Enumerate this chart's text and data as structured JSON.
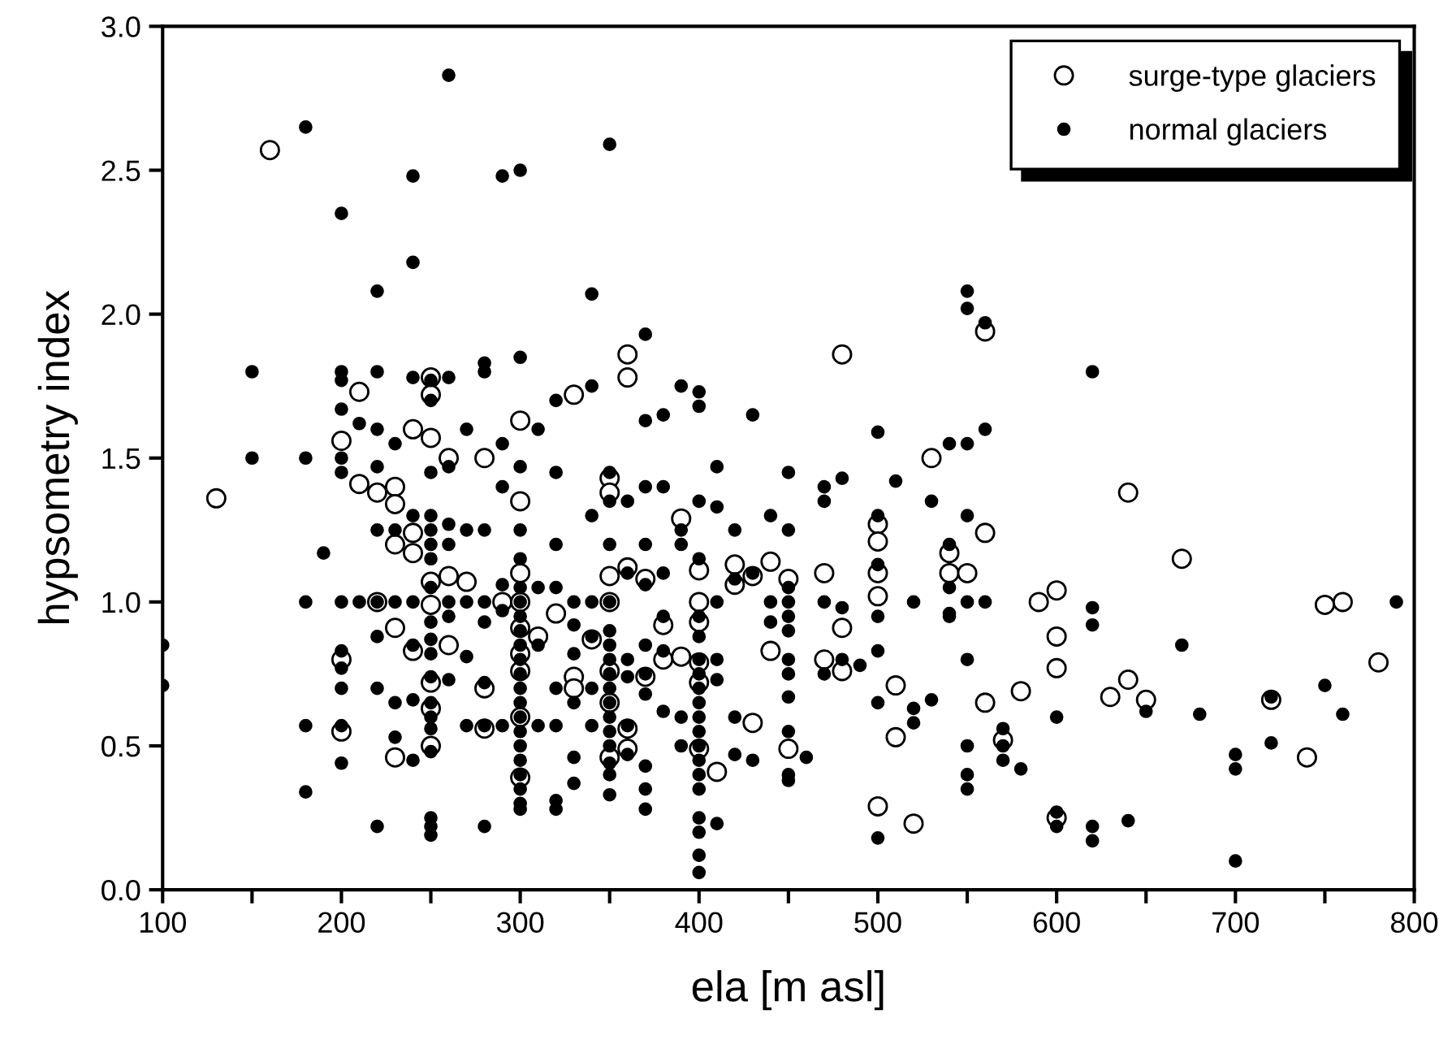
{
  "chart_data": {
    "type": "scatter",
    "xlabel": "ela [m asl]",
    "ylabel": "hypsometry index",
    "xlim": [
      100,
      800
    ],
    "ylim": [
      0.0,
      3.0
    ],
    "xticks": [
      100,
      {
        "value": 150,
        "label": null
      },
      200,
      {
        "value": 250,
        "label": null
      },
      300,
      {
        "value": 350,
        "label": null
      },
      400,
      {
        "value": 450,
        "label": null
      },
      500,
      {
        "value": 550,
        "label": null
      },
      600,
      {
        "value": 650,
        "label": null
      },
      700,
      {
        "value": 750,
        "label": null
      },
      800
    ],
    "yticks": [
      {
        "value": 0.0,
        "label": "0.0"
      },
      0.5,
      {
        "value": 1.0,
        "label": "1.0"
      },
      1.5,
      {
        "value": 2.0,
        "label": "2.0"
      },
      2.5,
      {
        "value": 3.0,
        "label": "3.0"
      }
    ],
    "grid": false,
    "legend": "top right",
    "series": [
      {
        "name": "surge-type glaciers",
        "color": "#000000",
        "marker": "open circle",
        "x": [
          130,
          160,
          200,
          200,
          200,
          210,
          210,
          220,
          220,
          230,
          230,
          230,
          230,
          230,
          240,
          240,
          240,
          240,
          250,
          250,
          250,
          250,
          250,
          250,
          250,
          250,
          260,
          260,
          260,
          270,
          280,
          280,
          280,
          290,
          300,
          300,
          300,
          300,
          300,
          300,
          300,
          300,
          300,
          310,
          320,
          330,
          330,
          330,
          340,
          350,
          350,
          350,
          350,
          350,
          350,
          350,
          360,
          360,
          360,
          360,
          360,
          370,
          370,
          380,
          380,
          390,
          390,
          400,
          400,
          400,
          400,
          400,
          400,
          410,
          420,
          420,
          430,
          430,
          440,
          440,
          450,
          450,
          470,
          470,
          480,
          480,
          480,
          500,
          500,
          500,
          500,
          500,
          510,
          510,
          520,
          530,
          540,
          540,
          550,
          560,
          560,
          560,
          570,
          580,
          590,
          600,
          600,
          600,
          600,
          630,
          640,
          640,
          650,
          670,
          720,
          740,
          750,
          760,
          780
        ],
        "values": [
          1.36,
          2.57,
          0.8,
          0.55,
          1.56,
          1.41,
          1.73,
          1.0,
          1.38,
          1.4,
          1.34,
          1.2,
          0.91,
          0.46,
          1.6,
          1.24,
          0.83,
          1.17,
          1.78,
          1.72,
          1.57,
          1.07,
          0.99,
          0.72,
          0.63,
          0.5,
          1.5,
          1.09,
          0.85,
          1.07,
          1.5,
          0.7,
          0.56,
          1.0,
          1.63,
          1.35,
          1.1,
          1.0,
          0.91,
          0.82,
          0.76,
          0.6,
          0.39,
          0.88,
          0.96,
          1.72,
          0.74,
          0.7,
          0.87,
          1.43,
          1.38,
          1.09,
          1.0,
          0.76,
          0.65,
          0.46,
          1.86,
          1.78,
          1.12,
          0.56,
          0.49,
          0.74,
          1.08,
          0.92,
          0.8,
          1.29,
          0.81,
          1.11,
          1.0,
          0.93,
          0.79,
          0.72,
          0.49,
          0.41,
          1.13,
          1.06,
          1.09,
          0.58,
          1.14,
          0.83,
          1.08,
          0.49,
          1.1,
          0.8,
          1.86,
          0.76,
          0.91,
          1.27,
          1.21,
          1.1,
          1.02,
          0.29,
          0.71,
          0.53,
          0.23,
          1.5,
          1.17,
          1.1,
          1.1,
          1.94,
          1.24,
          0.65,
          0.52,
          0.69,
          1.0,
          1.04,
          0.88,
          0.77,
          0.25,
          0.67,
          1.38,
          0.73,
          0.66,
          1.15,
          0.66,
          0.46,
          0.99,
          1.0,
          0.79
        ]
      },
      {
        "name": "normal glaciers",
        "color": "#000000",
        "marker": "circle",
        "x": [
          100,
          100,
          150,
          150,
          180,
          180,
          180,
          180,
          180,
          190,
          200,
          200,
          200,
          200,
          200,
          200,
          200,
          200,
          200,
          200,
          200,
          200,
          210,
          210,
          220,
          220,
          220,
          220,
          220,
          220,
          220,
          220,
          220,
          230,
          230,
          230,
          230,
          230,
          240,
          240,
          240,
          240,
          240,
          240,
          240,
          240,
          250,
          250,
          250,
          250,
          250,
          250,
          250,
          250,
          250,
          250,
          250,
          250,
          250,
          250,
          250,
          250,
          250,
          250,
          250,
          260,
          260,
          260,
          260,
          260,
          260,
          260,
          260,
          270,
          270,
          270,
          270,
          270,
          280,
          280,
          280,
          280,
          280,
          280,
          280,
          280,
          290,
          290,
          290,
          290,
          290,
          290,
          300,
          300,
          300,
          300,
          300,
          300,
          300,
          300,
          300,
          300,
          300,
          300,
          300,
          300,
          300,
          300,
          300,
          300,
          300,
          300,
          300,
          300,
          310,
          310,
          310,
          310,
          320,
          320,
          320,
          320,
          320,
          320,
          320,
          320,
          330,
          330,
          330,
          330,
          330,
          330,
          340,
          340,
          340,
          340,
          340,
          340,
          340,
          350,
          350,
          350,
          350,
          350,
          350,
          350,
          350,
          350,
          350,
          350,
          350,
          350,
          350,
          350,
          350,
          350,
          360,
          360,
          360,
          360,
          360,
          360,
          370,
          370,
          370,
          370,
          370,
          370,
          370,
          370,
          370,
          370,
          370,
          380,
          380,
          380,
          380,
          380,
          380,
          390,
          390,
          390,
          390,
          390,
          400,
          400,
          400,
          400,
          400,
          400,
          400,
          400,
          400,
          400,
          400,
          400,
          400,
          400,
          400,
          400,
          400,
          400,
          400,
          400,
          410,
          410,
          410,
          410,
          410,
          410,
          420,
          420,
          420,
          420,
          430,
          430,
          430,
          440,
          440,
          440,
          450,
          450,
          450,
          450,
          450,
          450,
          450,
          450,
          450,
          450,
          450,
          450,
          460,
          470,
          470,
          470,
          470,
          480,
          480,
          480,
          490,
          500,
          500,
          500,
          500,
          500,
          500,
          500,
          510,
          520,
          520,
          520,
          530,
          530,
          540,
          540,
          540,
          540,
          540,
          550,
          550,
          550,
          550,
          550,
          550,
          550,
          550,
          550,
          560,
          560,
          560,
          570,
          570,
          570,
          580,
          600,
          600,
          600,
          620,
          620,
          620,
          620,
          620,
          640,
          650,
          670,
          680,
          700,
          700,
          700,
          720,
          720,
          750,
          760,
          790
        ],
        "values": [
          0.85,
          0.71,
          1.8,
          1.5,
          2.65,
          1.5,
          1.0,
          0.57,
          0.34,
          1.17,
          2.35,
          1.8,
          1.77,
          1.67,
          1.5,
          1.45,
          1.0,
          0.83,
          0.77,
          0.7,
          0.57,
          0.44,
          1.62,
          1.0,
          2.08,
          1.8,
          1.6,
          1.47,
          1.25,
          1.0,
          0.88,
          0.7,
          0.22,
          1.55,
          1.25,
          1.0,
          0.65,
          0.53,
          2.48,
          2.18,
          1.78,
          1.3,
          1.0,
          0.85,
          0.66,
          0.45,
          1.77,
          1.7,
          1.45,
          1.3,
          1.25,
          1.2,
          1.15,
          1.05,
          0.93,
          0.87,
          0.82,
          0.74,
          0.65,
          0.6,
          0.56,
          0.48,
          0.25,
          0.22,
          0.19,
          2.83,
          1.78,
          1.47,
          1.27,
          1.2,
          1.0,
          0.95,
          0.73,
          1.6,
          1.25,
          1.0,
          0.81,
          0.57,
          1.83,
          1.8,
          1.25,
          1.0,
          0.93,
          0.72,
          0.57,
          0.22,
          2.48,
          1.55,
          1.4,
          1.06,
          0.97,
          0.57,
          2.5,
          1.85,
          1.47,
          1.25,
          1.15,
          1.05,
          1.0,
          0.95,
          0.9,
          0.85,
          0.8,
          0.75,
          0.7,
          0.65,
          0.6,
          0.55,
          0.5,
          0.45,
          0.4,
          0.35,
          0.3,
          0.28,
          1.6,
          1.05,
          0.85,
          0.57,
          1.7,
          1.45,
          1.2,
          1.05,
          0.7,
          0.57,
          0.31,
          0.28,
          1.0,
          0.92,
          0.82,
          0.65,
          0.46,
          0.37,
          2.07,
          1.75,
          1.3,
          1.0,
          0.88,
          0.7,
          0.57,
          2.59,
          1.45,
          1.35,
          1.2,
          1.0,
          0.9,
          0.85,
          0.8,
          0.75,
          0.7,
          0.65,
          0.6,
          0.55,
          0.5,
          0.44,
          0.4,
          0.33,
          1.35,
          1.1,
          0.8,
          0.74,
          0.57,
          0.47,
          1.93,
          1.63,
          1.4,
          1.2,
          1.06,
          0.85,
          0.75,
          0.68,
          0.43,
          0.35,
          0.28,
          1.65,
          1.4,
          1.1,
          0.95,
          0.83,
          0.62,
          1.75,
          1.25,
          1.2,
          0.6,
          0.5,
          1.73,
          1.68,
          1.35,
          1.15,
          0.95,
          0.88,
          0.8,
          0.75,
          0.7,
          0.65,
          0.6,
          0.55,
          0.5,
          0.45,
          0.4,
          0.35,
          0.25,
          0.2,
          0.12,
          0.06,
          1.47,
          1.33,
          1.0,
          0.8,
          0.73,
          0.23,
          1.25,
          1.08,
          0.6,
          0.47,
          1.65,
          1.1,
          0.45,
          1.0,
          0.93,
          1.3,
          1.45,
          1.25,
          1.05,
          1.0,
          0.95,
          0.9,
          0.8,
          0.75,
          0.67,
          0.55,
          0.4,
          0.38,
          0.46,
          1.4,
          1.35,
          1.0,
          0.75,
          1.43,
          0.98,
          0.8,
          0.78,
          1.59,
          1.3,
          1.13,
          0.95,
          0.83,
          0.65,
          0.18,
          1.42,
          1.0,
          0.63,
          0.58,
          1.35,
          0.66,
          1.55,
          1.2,
          1.05,
          0.96,
          0.95,
          2.08,
          2.02,
          1.55,
          1.3,
          1.0,
          0.8,
          0.5,
          0.4,
          0.35,
          1.97,
          1.6,
          1.0,
          0.56,
          0.5,
          0.45,
          0.42,
          0.6,
          0.27,
          0.22,
          1.8,
          0.98,
          0.92,
          0.22,
          0.17,
          0.24,
          0.62,
          0.85,
          0.61,
          0.47,
          0.42,
          0.1,
          0.67,
          0.51,
          0.71,
          0.61,
          1.0
        ]
      }
    ]
  }
}
